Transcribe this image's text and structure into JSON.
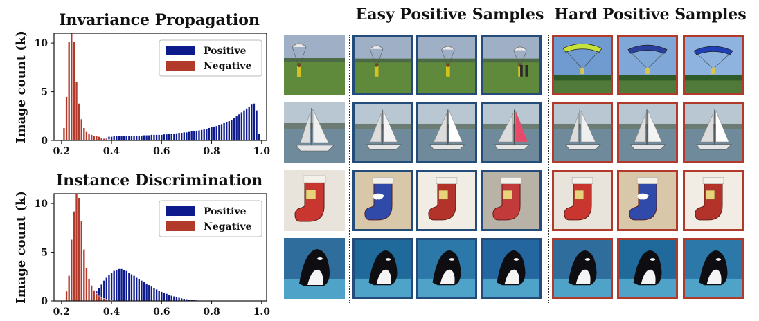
{
  "chart_data": [
    {
      "type": "bar",
      "title": "Invariance Propagation",
      "ylabel": "Image count (k)",
      "xlabel": "",
      "xlim": [
        0.17,
        1.02
      ],
      "ylim": [
        0,
        11
      ],
      "xticks": [
        "0.2",
        "0.4",
        "0.6",
        "0.8",
        "1.0"
      ],
      "yticks": [
        "0",
        "5",
        "10"
      ],
      "legend_position": "top-right",
      "series": [
        {
          "name": "Positive",
          "color": "#0d1a8c",
          "x": [
            0.37,
            0.38,
            0.39,
            0.4,
            0.41,
            0.42,
            0.43,
            0.44,
            0.45,
            0.46,
            0.47,
            0.48,
            0.49,
            0.5,
            0.51,
            0.52,
            0.53,
            0.54,
            0.55,
            0.56,
            0.57,
            0.58,
            0.59,
            0.6,
            0.61,
            0.62,
            0.63,
            0.64,
            0.65,
            0.66,
            0.67,
            0.68,
            0.69,
            0.7,
            0.71,
            0.72,
            0.73,
            0.74,
            0.75,
            0.76,
            0.77,
            0.78,
            0.79,
            0.8,
            0.81,
            0.82,
            0.83,
            0.84,
            0.85,
            0.86,
            0.87,
            0.88,
            0.89,
            0.9,
            0.91,
            0.92,
            0.93,
            0.94,
            0.95,
            0.96,
            0.97,
            0.98,
            0.99
          ],
          "values": [
            0.2,
            0.3,
            0.4,
            0.4,
            0.45,
            0.45,
            0.45,
            0.45,
            0.5,
            0.5,
            0.5,
            0.5,
            0.5,
            0.5,
            0.5,
            0.5,
            0.55,
            0.55,
            0.55,
            0.6,
            0.6,
            0.6,
            0.6,
            0.6,
            0.65,
            0.65,
            0.7,
            0.7,
            0.7,
            0.75,
            0.8,
            0.8,
            0.85,
            0.85,
            0.9,
            0.95,
            1.0,
            1.0,
            1.05,
            1.1,
            1.15,
            1.2,
            1.3,
            1.4,
            1.45,
            1.5,
            1.6,
            1.7,
            1.8,
            1.9,
            2.0,
            2.1,
            2.3,
            2.5,
            2.7,
            2.9,
            3.1,
            3.3,
            3.5,
            3.7,
            3.8,
            3.1,
            0.7
          ]
        },
        {
          "name": "Negative",
          "color": "#b23a2b",
          "x": [
            0.21,
            0.22,
            0.23,
            0.24,
            0.25,
            0.26,
            0.27,
            0.28,
            0.29,
            0.3,
            0.31,
            0.32,
            0.33,
            0.34,
            0.35,
            0.36,
            0.37,
            0.38,
            0.39,
            0.4
          ],
          "values": [
            1.3,
            4.5,
            10.1,
            11.0,
            10.1,
            6.0,
            3.8,
            2.2,
            1.3,
            0.9,
            0.7,
            0.6,
            0.5,
            0.45,
            0.4,
            0.3,
            0.2,
            0.15,
            0.1,
            0.05
          ]
        }
      ]
    },
    {
      "type": "bar",
      "title": "Instance Discrimination",
      "ylabel": "Image count (k)",
      "xlabel": "",
      "xlim": [
        0.17,
        1.02
      ],
      "ylim": [
        0,
        11
      ],
      "xticks": [
        "0.2",
        "0.4",
        "0.6",
        "0.8",
        "1.0"
      ],
      "yticks": [
        "0",
        "5",
        "10"
      ],
      "legend_position": "top-right",
      "series": [
        {
          "name": "Positive",
          "color": "#0d1a8c",
          "x": [
            0.28,
            0.29,
            0.3,
            0.31,
            0.32,
            0.33,
            0.34,
            0.35,
            0.36,
            0.37,
            0.38,
            0.39,
            0.4,
            0.41,
            0.42,
            0.43,
            0.44,
            0.45,
            0.46,
            0.47,
            0.48,
            0.49,
            0.5,
            0.51,
            0.52,
            0.53,
            0.54,
            0.55,
            0.56,
            0.57,
            0.58,
            0.59,
            0.6,
            0.61,
            0.62,
            0.63,
            0.64,
            0.65,
            0.66,
            0.67,
            0.68,
            0.69,
            0.7,
            0.71,
            0.72,
            0.73,
            0.74,
            0.75,
            0.76,
            0.77,
            0.78,
            0.79,
            0.8,
            0.81,
            0.82,
            0.83,
            0.84,
            0.85,
            0.86
          ],
          "values": [
            0.05,
            0.1,
            0.2,
            0.3,
            0.5,
            0.7,
            1.0,
            1.3,
            1.7,
            2.1,
            2.4,
            2.7,
            2.9,
            3.1,
            3.2,
            3.3,
            3.3,
            3.2,
            3.1,
            2.9,
            2.75,
            2.6,
            2.4,
            2.25,
            2.1,
            1.95,
            1.8,
            1.65,
            1.5,
            1.35,
            1.2,
            1.05,
            0.95,
            0.85,
            0.75,
            0.65,
            0.55,
            0.48,
            0.4,
            0.34,
            0.28,
            0.23,
            0.19,
            0.15,
            0.12,
            0.1,
            0.08,
            0.06,
            0.05,
            0.04,
            0.03,
            0.02,
            0.02,
            0.015,
            0.01,
            0.01,
            0.01,
            0.005,
            0.005
          ]
        },
        {
          "name": "Negative",
          "color": "#b23a2b",
          "x": [
            0.22,
            0.23,
            0.24,
            0.25,
            0.26,
            0.27,
            0.28,
            0.29,
            0.3,
            0.31,
            0.32,
            0.33,
            0.34,
            0.35,
            0.36,
            0.37,
            0.38,
            0.39,
            0.4
          ],
          "values": [
            1.0,
            2.6,
            6.3,
            9.2,
            11.0,
            10.6,
            8.2,
            5.3,
            3.4,
            2.3,
            1.6,
            1.1,
            0.75,
            0.5,
            0.35,
            0.25,
            0.15,
            0.1,
            0.05
          ]
        }
      ]
    }
  ],
  "gallery": {
    "easy_title": "Easy Positive Samples",
    "hard_title": "Hard Positive Samples",
    "rows": [
      {
        "query": "parachute-landing-scene",
        "easy": [
          "parachute-landing-scene",
          "parachute-landing-scene",
          "parachute-landing-scene"
        ],
        "hard": [
          "parachute-sky-scene",
          "parachute-sky-scene",
          "parachute-sky-scene"
        ]
      },
      {
        "query": "sailboat-scene",
        "easy": [
          "sailboat-scene",
          "sailboat-scene",
          "sailboat-scene"
        ],
        "hard": [
          "sailboat-scene",
          "sailboat-scene",
          "sailboat-scene"
        ]
      },
      {
        "query": "christmas-stocking-scene",
        "easy": [
          "christmas-stocking-scene",
          "christmas-stocking-scene",
          "christmas-stocking-scene"
        ],
        "hard": [
          "christmas-stocking-scene",
          "christmas-stocking-scene",
          "christmas-stocking-scene"
        ]
      },
      {
        "query": "orca-whale-scene",
        "easy": [
          "orca-whale-scene",
          "orca-whale-scene",
          "orca-whale-scene"
        ],
        "hard": [
          "orca-whale-scene",
          "orca-whale-scene",
          "orca-whale-scene"
        ]
      }
    ],
    "colors": {
      "easy_border": "#244c7a",
      "hard_border": "#b23a2b"
    }
  }
}
